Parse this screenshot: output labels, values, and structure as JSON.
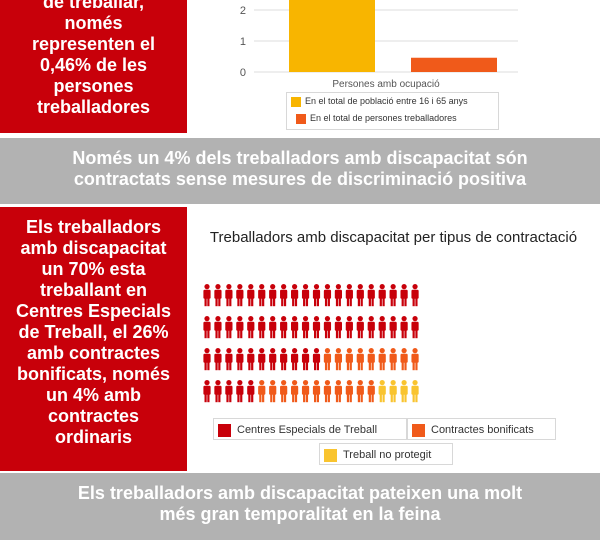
{
  "panel_top": {
    "text_lines": [
      "de treballar,",
      "només",
      "representen el",
      "0,46% de les",
      "persones",
      "treballadores"
    ]
  },
  "band_1": {
    "text_lines": [
      "Només un 4% dels treballadors amb discapacitat són",
      "contractats sense mesures de discriminació positiva"
    ]
  },
  "panel_middle": {
    "text_lines": [
      "Els treballadors",
      "amb discapacitat",
      "un 70% esta",
      "treballant en",
      "Centres Especials",
      "de Treball, el 26%",
      "amb contractes",
      "bonificats, només",
      "un 4% amb",
      "contractes",
      "ordinaris"
    ]
  },
  "band_2": {
    "text_lines": [
      "Els treballadors amb discapacitat pateixen una molt",
      "més gran temporalitat en la feina"
    ]
  },
  "colors": {
    "brand_red": "#c8000a",
    "band_gray": "#b2b2b2",
    "series_yellow": "#f8b500",
    "series_orange": "#f05a1a",
    "icon_red": "#c8000a",
    "icon_orange": "#f05a1a",
    "icon_yellow": "#f9c42f"
  },
  "chart_data": [
    {
      "type": "bar",
      "categories": [
        "Persones amb ocupació"
      ],
      "series": [
        {
          "name": "En el total de població entre 16 i 65 anys",
          "values": [
            2.5
          ],
          "color": "#f8b500"
        },
        {
          "name": "En el total de persones treballadores",
          "values": [
            0.46
          ],
          "color": "#f05a1a"
        }
      ],
      "ylim": [
        0,
        2.5
      ],
      "yticks": [
        "0",
        "1",
        "2"
      ],
      "grid": true,
      "legend": "bottom"
    },
    {
      "type": "pictogram",
      "title": "Treballadors amb discapacitat per tipus de contractació",
      "total_icons": 80,
      "rows": 4,
      "series": [
        {
          "name": "Centres Especials de Treball",
          "count": 56,
          "color": "#c8000a"
        },
        {
          "name": "Contractes bonificats",
          "count": 20,
          "color": "#f05a1a"
        },
        {
          "name": "Treball no protegit",
          "count": 4,
          "color": "#f9c42f"
        }
      ],
      "legend": "bottom"
    }
  ]
}
